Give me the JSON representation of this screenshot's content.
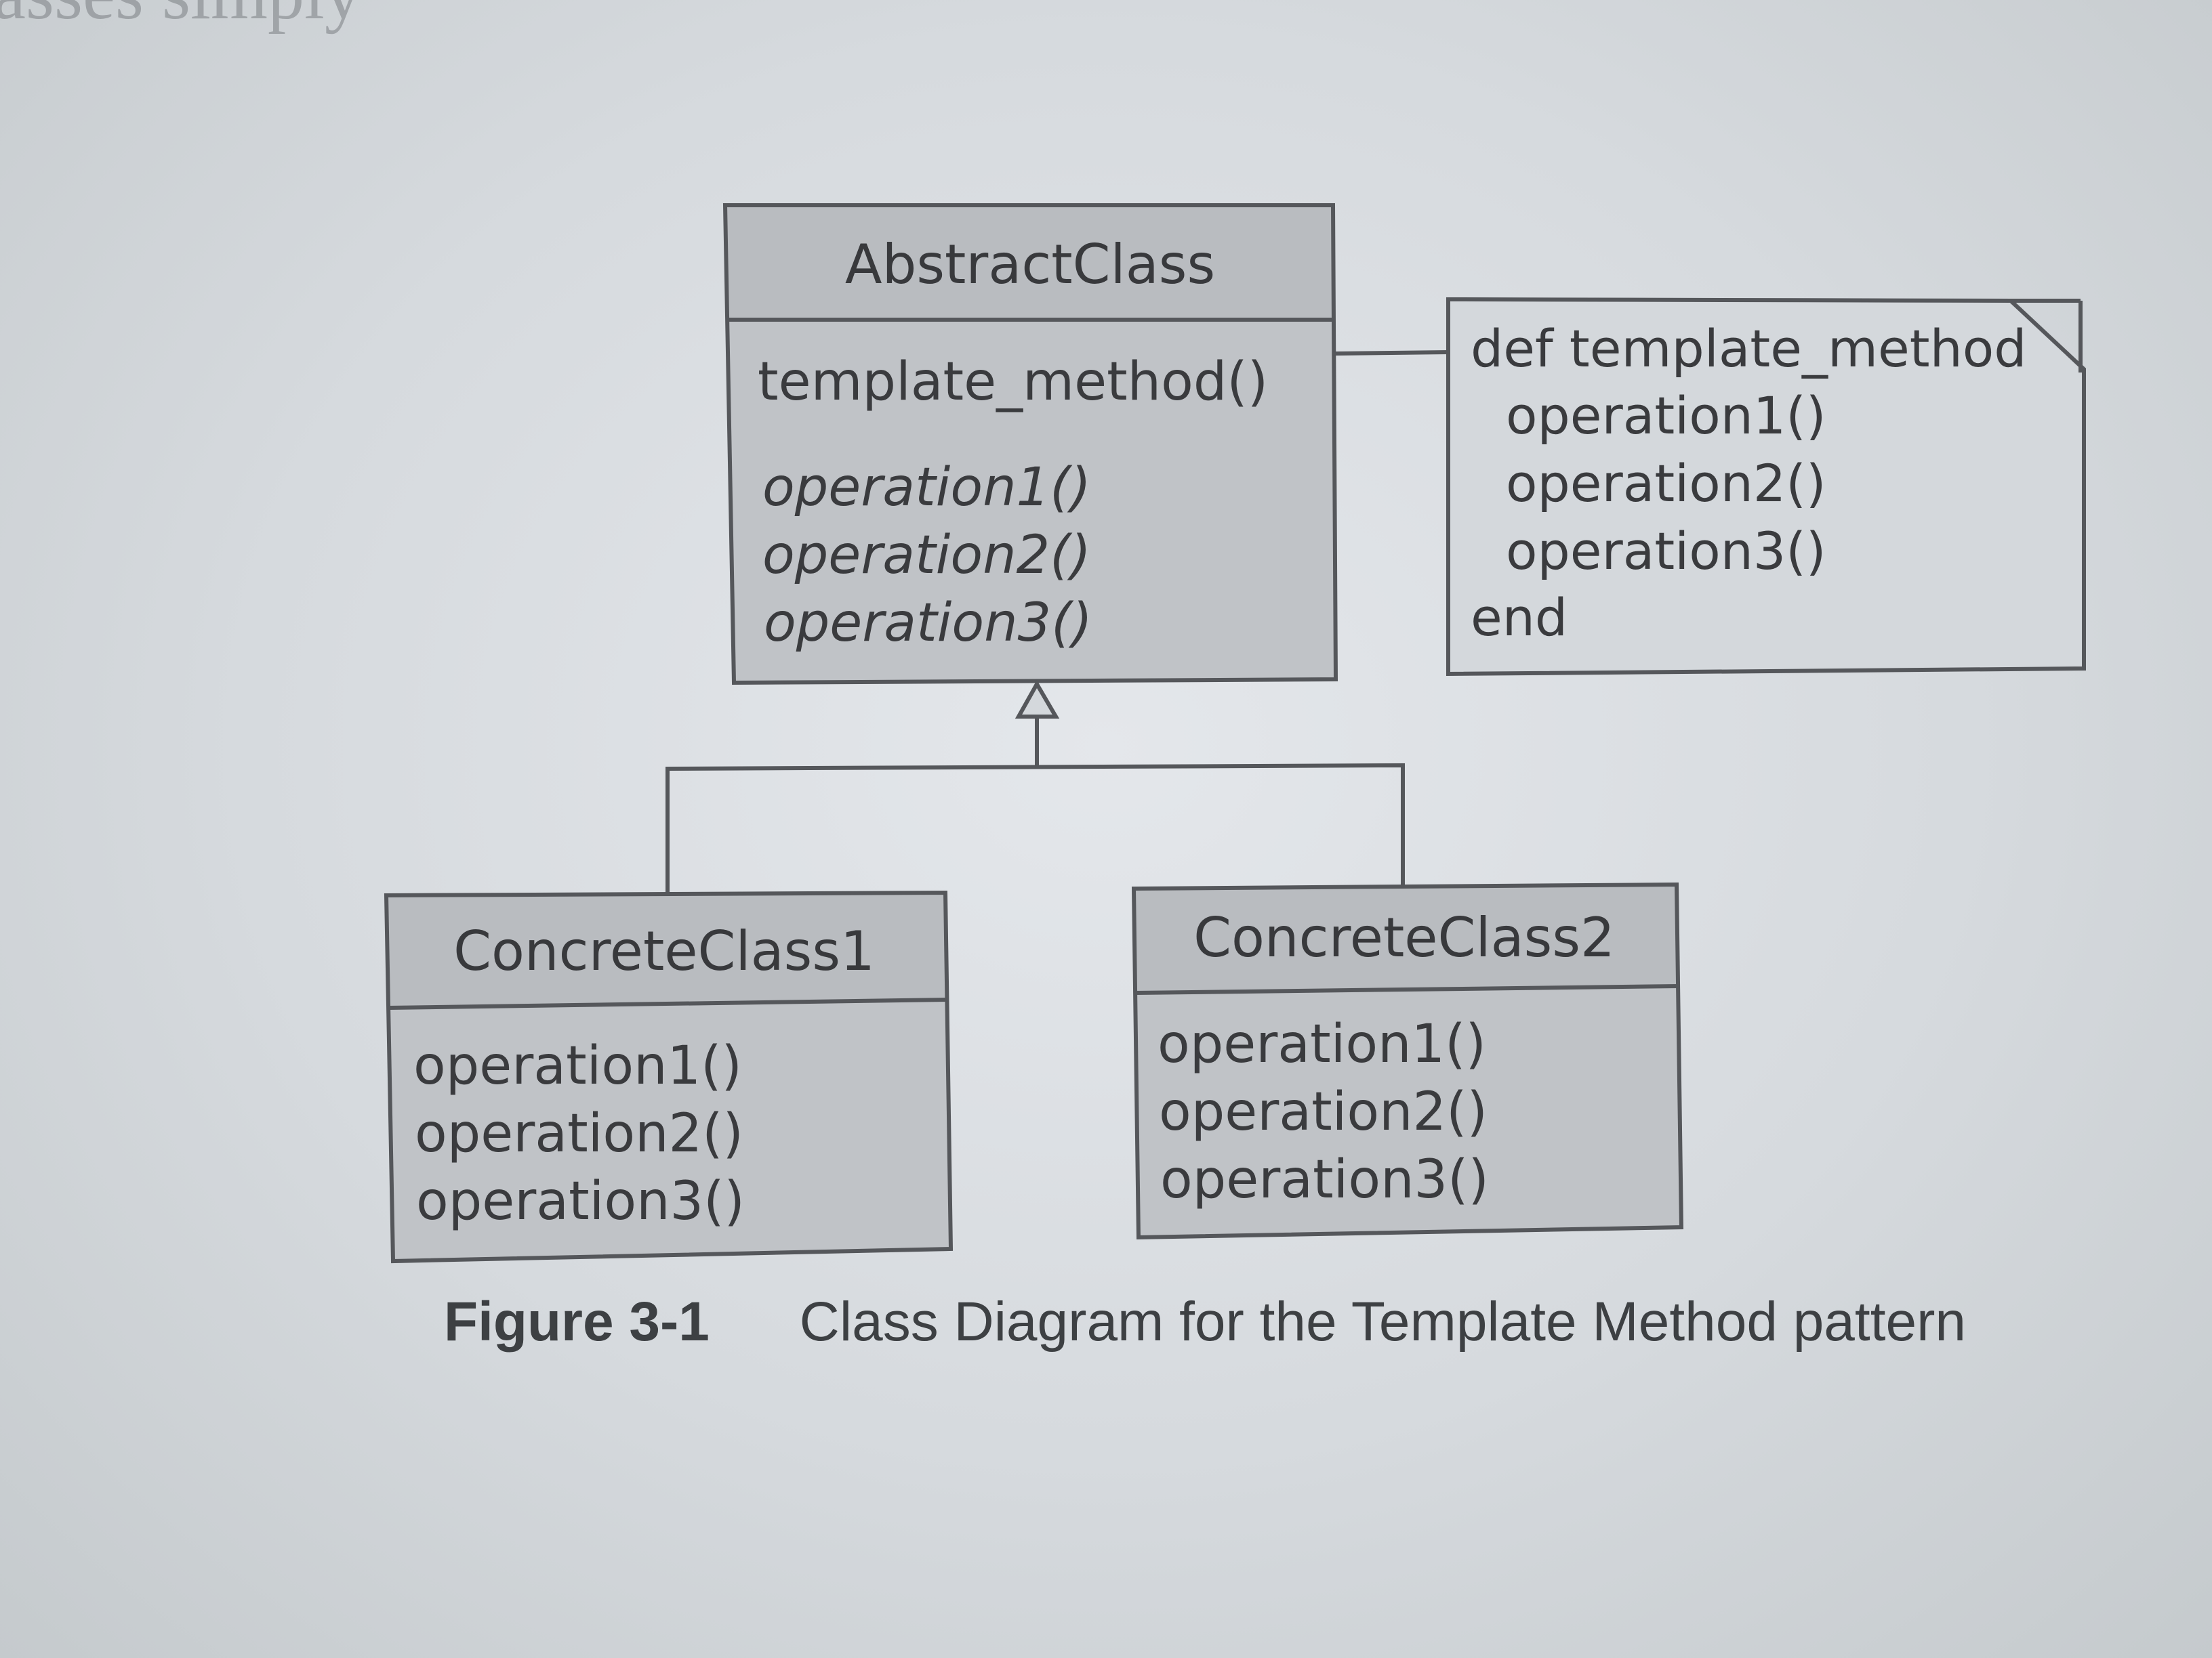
{
  "page_top_text": "asses simply",
  "abstract_class": {
    "name": "AbstractClass",
    "template_method": "template_method()",
    "abstract_operations": [
      "operation1()",
      "operation2()",
      "operation3()"
    ]
  },
  "note": {
    "lines": [
      "def template_method",
      "operation1()",
      "operation2()",
      "operation3()",
      "end"
    ]
  },
  "concrete_class_1": {
    "name": "ConcreteClass1",
    "operations": [
      "operation1()",
      "operation2()",
      "operation3()"
    ]
  },
  "concrete_class_2": {
    "name": "ConcreteClass2",
    "operations": [
      "operation1()",
      "operation2()",
      "operation3()"
    ]
  },
  "caption": {
    "figure_number": "Figure 3-1",
    "text": "Class Diagram for the Template Method pattern"
  }
}
